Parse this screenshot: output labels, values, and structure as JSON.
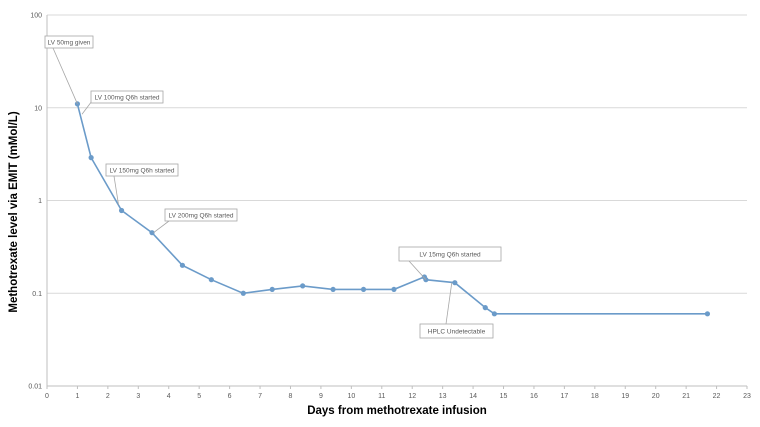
{
  "chart_data": {
    "type": "line",
    "title": "",
    "xlabel": "Days from methotrexate infusion",
    "ylabel": "Methotrexate level via EMIT (mMol/L)",
    "xlim": [
      0,
      23
    ],
    "ylim": [
      0.01,
      100
    ],
    "yscale": "log",
    "grid": "horizontal",
    "legend": "none",
    "colors": {
      "series": "#6b9bc9",
      "grid": "#d9d9d9",
      "axis": "#bfbfbf",
      "annotation_border": "#a6a6a6"
    },
    "x_ticks": [
      "0",
      "1",
      "2",
      "3",
      "4",
      "5",
      "6",
      "7",
      "8",
      "9",
      "10",
      "11",
      "12",
      "13",
      "14",
      "15",
      "16",
      "17",
      "18",
      "19",
      "20",
      "21",
      "22",
      "23"
    ],
    "y_ticks": [
      "0.01",
      "0.1",
      "1",
      "10",
      "100"
    ],
    "series": [
      {
        "x": [
          1.0,
          1.45,
          2.45,
          3.45,
          4.45,
          5.4,
          6.45,
          7.4,
          8.4,
          9.4,
          10.4,
          11.4,
          12.4,
          12.45,
          13.4,
          14.4,
          14.7,
          21.7
        ],
        "y": [
          11,
          2.9,
          0.78,
          0.45,
          0.2,
          0.14,
          0.1,
          0.11,
          0.12,
          0.11,
          0.11,
          0.11,
          0.15,
          0.14,
          0.13,
          0.07,
          0.06,
          0.06
        ]
      }
    ],
    "annotations": [
      {
        "text": "LV 50mg given",
        "point_x": 1.0,
        "point_y": 11
      },
      {
        "text": "LV 100mg Q6h started",
        "point_x": 1.15,
        "point_y": 8.5
      },
      {
        "text": "LV 150mg Q6h started",
        "point_x": 2.35,
        "point_y": 0.9
      },
      {
        "text": "LV 200mg Q6h started",
        "point_x": 3.5,
        "point_y": 0.45
      },
      {
        "text": "LV 15mg Q6h started",
        "point_x": 12.45,
        "point_y": 0.14
      },
      {
        "text": "HPLC Undetectable",
        "point_x": 13.3,
        "point_y": 0.13
      }
    ]
  }
}
